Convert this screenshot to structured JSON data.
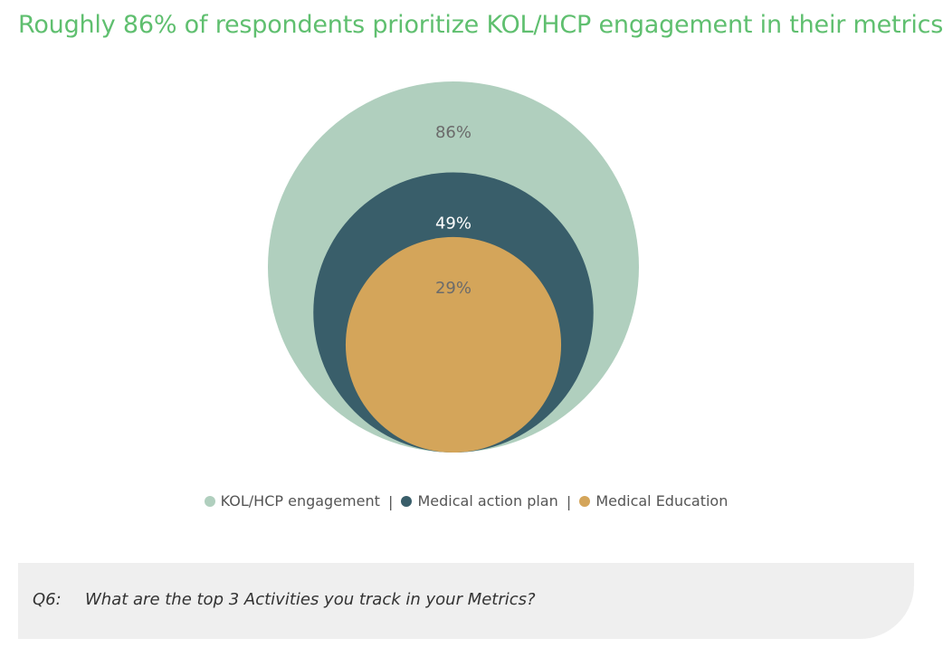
{
  "title": "Roughly 86% of respondents prioritize KOL/HCP engagement in their metrics",
  "chart_data": {
    "type": "nested-bubble",
    "series": [
      {
        "name": "KOL/HCP engagement",
        "value": 86,
        "label": "86%",
        "color": "#b0cfbe",
        "label_color": "#6b6b6b"
      },
      {
        "name": "Medical action plan",
        "value": 49,
        "label": "49%",
        "color": "#395e6a",
        "label_color": "#ffffff"
      },
      {
        "name": "Medical Education",
        "value": 29,
        "label": "29%",
        "color": "#d4a55a",
        "label_color": "#6b6b6b"
      }
    ],
    "legend_position": "bottom",
    "separators": [
      "|",
      "|"
    ]
  },
  "question": {
    "number": "Q6:",
    "text": "What are the top 3 Activities you track in your Metrics?"
  }
}
